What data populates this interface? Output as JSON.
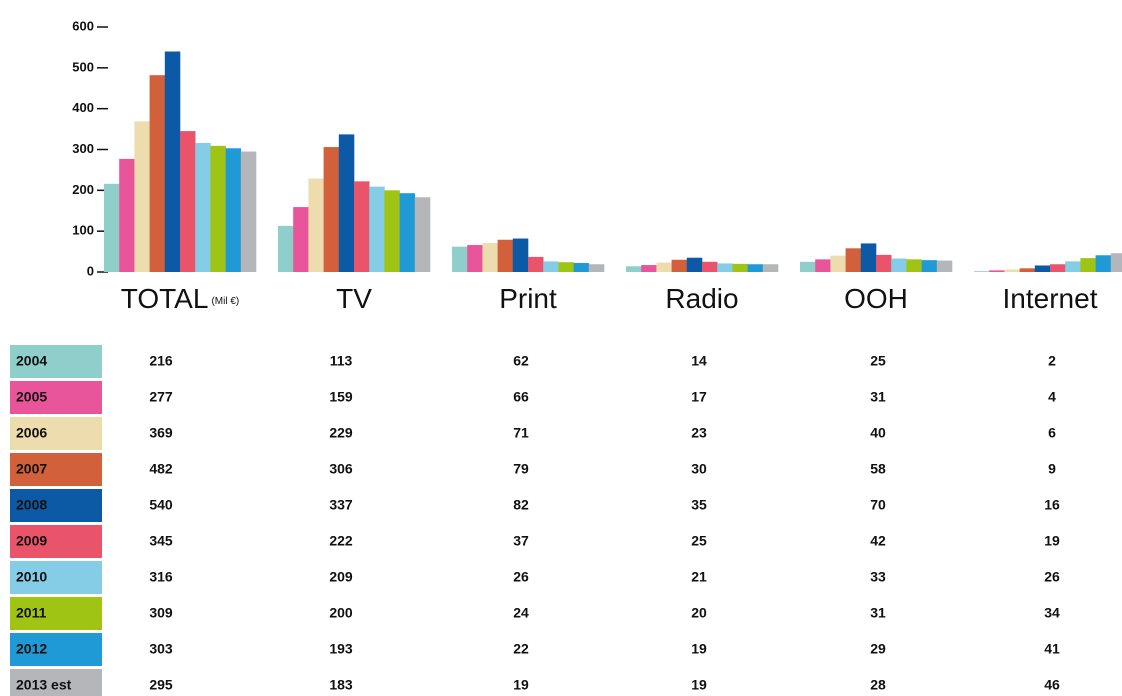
{
  "chart_data": {
    "type": "bar",
    "unit_label": "(Mil €)",
    "categories": [
      "TOTAL",
      "TV",
      "Print",
      "Radio",
      "OOH",
      "Internet"
    ],
    "series": [
      {
        "name": "2004",
        "color": "#8ecfcb",
        "values": [
          216,
          113,
          62,
          14,
          25,
          2
        ]
      },
      {
        "name": "2005",
        "color": "#e8559a",
        "values": [
          277,
          159,
          66,
          17,
          31,
          4
        ]
      },
      {
        "name": "2006",
        "color": "#eddcae",
        "values": [
          369,
          229,
          71,
          23,
          40,
          6
        ]
      },
      {
        "name": "2007",
        "color": "#d2603b",
        "values": [
          482,
          306,
          79,
          30,
          58,
          9
        ]
      },
      {
        "name": "2008",
        "color": "#0c5aa6",
        "values": [
          540,
          337,
          82,
          35,
          70,
          16
        ]
      },
      {
        "name": "2009",
        "color": "#e9546b",
        "values": [
          345,
          222,
          37,
          25,
          42,
          19
        ]
      },
      {
        "name": "2010",
        "color": "#85cde6",
        "values": [
          316,
          209,
          26,
          21,
          33,
          26
        ]
      },
      {
        "name": "2011",
        "color": "#a0c414",
        "values": [
          309,
          200,
          24,
          20,
          31,
          34
        ]
      },
      {
        "name": "2012",
        "color": "#1f9ad6",
        "values": [
          303,
          193,
          22,
          19,
          29,
          41
        ]
      },
      {
        "name": "2013 est",
        "color": "#b4b6ba",
        "values": [
          295,
          183,
          19,
          19,
          28,
          46
        ]
      }
    ],
    "ylim": [
      0,
      600
    ],
    "yticks": [
      0,
      100,
      200,
      300,
      400,
      500,
      600
    ],
    "grid": false
  }
}
